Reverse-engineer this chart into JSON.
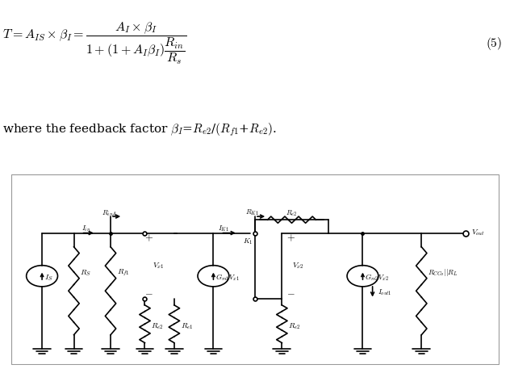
{
  "bg_color": "#ffffff",
  "line_color": "#000000",
  "lw": 1.2
}
